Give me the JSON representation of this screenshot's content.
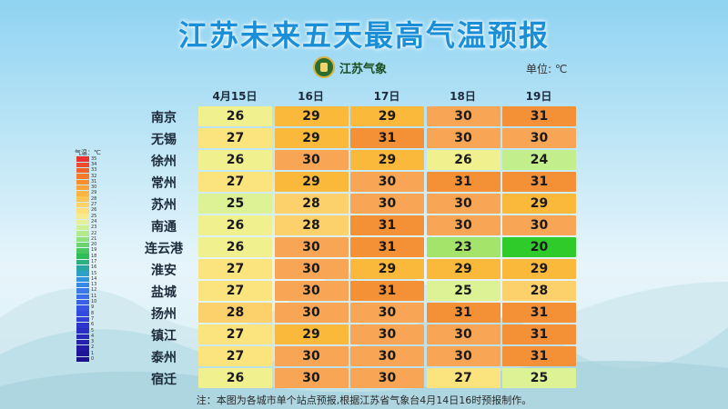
{
  "title": "江苏未来五天最高气温预报",
  "logo_text": "江苏气象",
  "unit_label": "单位: ℃",
  "note": "注：本图为各城市单个站点预报,根据江苏省气象台4月14日16时预报制作。",
  "scale": {
    "title": "气温：℃",
    "ticks": [
      "35",
      "34",
      "33",
      "32",
      "31",
      "30",
      "29",
      "28",
      "27",
      "26",
      "25",
      "24",
      "23",
      "22",
      "21",
      "20",
      "19",
      "18",
      "17",
      "16",
      "15",
      "14",
      "13",
      "12",
      "11",
      "10",
      "9",
      "8",
      "7",
      "6",
      "5",
      "4",
      "3",
      "2",
      "1",
      "0"
    ],
    "colors": [
      "#e83232",
      "#ee4a2e",
      "#f2622b",
      "#f57a2a",
      "#f78f2f",
      "#f9a33a",
      "#fbb545",
      "#fcc454",
      "#fdd266",
      "#fde07a",
      "#f5ea8e",
      "#e6f09a",
      "#cdf093",
      "#b3ea8a",
      "#8fe07a",
      "#6cd46e",
      "#49c861",
      "#2fbb55",
      "#2ab07e",
      "#2aa6a2",
      "#2e9fc6",
      "#3595dc",
      "#3a88e6",
      "#3a7ae8",
      "#3a6de8",
      "#3a60e6",
      "#3754e3",
      "#3449de",
      "#313fd6",
      "#2e36cc",
      "#2b2ec2",
      "#2827b8",
      "#2520ad",
      "#221aa2",
      "#1f1596",
      "#1c118a"
    ]
  },
  "chart_data": {
    "type": "table",
    "title": "江苏未来五天最高气温预报",
    "unit": "℃",
    "columns": [
      "4月15日",
      "16日",
      "17日",
      "18日",
      "19日"
    ],
    "rows": [
      {
        "city": "南京",
        "values": [
          26,
          29,
          29,
          30,
          31
        ]
      },
      {
        "city": "无锡",
        "values": [
          27,
          29,
          31,
          30,
          30
        ]
      },
      {
        "city": "徐州",
        "values": [
          26,
          30,
          29,
          26,
          24
        ]
      },
      {
        "city": "常州",
        "values": [
          27,
          29,
          30,
          31,
          31
        ]
      },
      {
        "city": "苏州",
        "values": [
          25,
          28,
          30,
          30,
          29
        ]
      },
      {
        "city": "南通",
        "values": [
          26,
          28,
          31,
          30,
          30
        ]
      },
      {
        "city": "连云港",
        "values": [
          26,
          30,
          31,
          23,
          20
        ]
      },
      {
        "city": "淮安",
        "values": [
          27,
          30,
          29,
          29,
          29
        ]
      },
      {
        "city": "盐城",
        "values": [
          27,
          30,
          31,
          25,
          28
        ]
      },
      {
        "city": "扬州",
        "values": [
          28,
          30,
          30,
          31,
          31
        ]
      },
      {
        "city": "镇江",
        "values": [
          27,
          29,
          30,
          30,
          31
        ]
      },
      {
        "city": "泰州",
        "values": [
          27,
          30,
          30,
          30,
          31
        ]
      },
      {
        "city": "宿迁",
        "values": [
          26,
          30,
          30,
          27,
          25
        ]
      }
    ]
  }
}
